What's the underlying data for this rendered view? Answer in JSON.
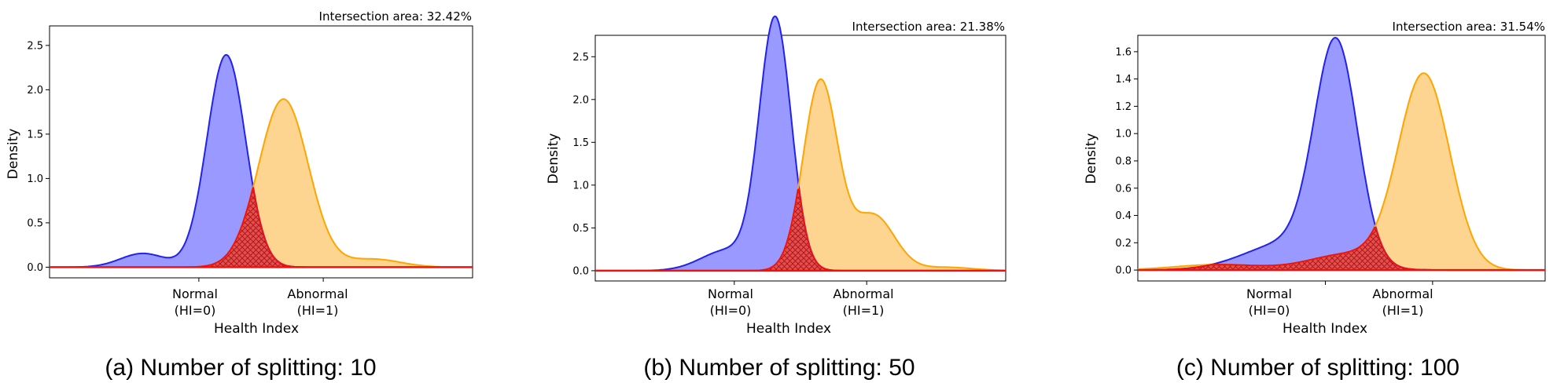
{
  "chart_data": [
    {
      "type": "area",
      "caption": "(a) Number of splitting: 10",
      "annotation": "Intersection area: 32.42%",
      "xlabel": "Health Index",
      "ylabel": "Density",
      "x_categories": [
        {
          "x": 0.0,
          "label_line1": "Normal",
          "label_line2": "(HI=0)"
        },
        {
          "x": 1.0,
          "label_line1": "Abnormal",
          "label_line2": "(HI=1)"
        }
      ],
      "xlim": [
        -1.2,
        2.2
      ],
      "ylim": [
        -0.12,
        2.72
      ],
      "yticks": [
        "0.0",
        "0.5",
        "1.0",
        "1.5",
        "2.0",
        "2.5"
      ],
      "series": [
        {
          "name": "Normal (HI=0)",
          "color": "#2222ee",
          "fill": "#9999ff",
          "components": [
            {
              "mu": 0.22,
              "sd": 0.155,
              "w": 0.93
            },
            {
              "mu": -0.45,
              "sd": 0.18,
              "w": 0.07
            }
          ]
        },
        {
          "name": "Abnormal (HI=1)",
          "color": "#ffa500",
          "fill": "#fed590",
          "components": [
            {
              "mu": 0.68,
              "sd": 0.2,
              "w": 0.95
            },
            {
              "mu": 1.4,
              "sd": 0.22,
              "w": 0.05
            }
          ]
        }
      ],
      "intersection": {
        "name": "Intersection",
        "color": "#ee1111",
        "fill": "#e05050"
      }
    },
    {
      "type": "area",
      "caption": "(b) Number of splitting: 50",
      "annotation": "Intersection area: 21.38%",
      "xlabel": "Health Index",
      "ylabel": "Density",
      "x_categories": [
        {
          "x": 0.0,
          "label_line1": "Normal",
          "label_line2": "(HI=0)"
        },
        {
          "x": 1.0,
          "label_line1": "Abnormal",
          "label_line2": "(HI=1)"
        }
      ],
      "xlim": [
        -1.05,
        2.05
      ],
      "ylim": [
        -0.12,
        2.75
      ],
      "yticks": [
        "0.0",
        "0.5",
        "1.0",
        "1.5",
        "2.0",
        "2.5"
      ],
      "series": [
        {
          "name": "Normal (HI=0)",
          "color": "#2222ee",
          "fill": "#9999ff",
          "components": [
            {
              "mu": 0.31,
              "sd": 0.12,
              "w": 0.88
            },
            {
              "mu": -0.05,
              "sd": 0.2,
              "w": 0.12
            }
          ]
        },
        {
          "name": "Abnormal (HI=1)",
          "color": "#ffa500",
          "fill": "#fed590",
          "components": [
            {
              "mu": 0.65,
              "sd": 0.13,
              "w": 0.72
            },
            {
              "mu": 1.05,
              "sd": 0.16,
              "w": 0.26
            },
            {
              "mu": 1.6,
              "sd": 0.2,
              "w": 0.02
            }
          ]
        }
      ],
      "intersection": {
        "name": "Intersection",
        "color": "#ee1111",
        "fill": "#e05050"
      }
    },
    {
      "type": "area",
      "caption": "(c) Number of splitting: 100",
      "annotation": "Intersection area: 31.54%",
      "xlabel": "Health Index",
      "ylabel": "Density",
      "x_categories": [
        {
          "x": 0.0,
          "label_line1": "Normal",
          "label_line2": "(HI=0)"
        },
        {
          "x": 1.0,
          "label_line1": "Abnormal",
          "label_line2": "(HI=1)"
        }
      ],
      "xlim": [
        -1.75,
        2.05
      ],
      "ylim": [
        -0.08,
        1.72
      ],
      "yticks": [
        "0.0",
        "0.2",
        "0.4",
        "0.6",
        "0.8",
        "1.0",
        "1.2",
        "1.4",
        "1.6"
      ],
      "series": [
        {
          "name": "Normal (HI=0)",
          "color": "#2222ee",
          "fill": "#9999ff",
          "components": [
            {
              "mu": 0.1,
              "sd": 0.2,
              "w": 0.8
            },
            {
              "mu": -0.35,
              "sd": 0.4,
              "w": 0.2
            }
          ]
        },
        {
          "name": "Abnormal (HI=1)",
          "color": "#ffa500",
          "fill": "#fed590",
          "components": [
            {
              "mu": 0.92,
              "sd": 0.24,
              "w": 0.86
            },
            {
              "mu": 0.2,
              "sd": 0.35,
              "w": 0.1
            },
            {
              "mu": -1.0,
              "sd": 0.4,
              "w": 0.04
            }
          ]
        }
      ],
      "intersection": {
        "name": "Intersection",
        "color": "#ee1111",
        "fill": "#e05050"
      }
    }
  ]
}
